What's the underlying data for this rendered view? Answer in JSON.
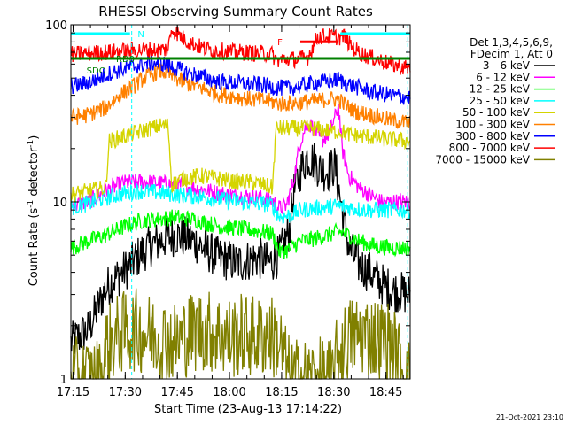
{
  "chart_data": {
    "type": "line",
    "title": "RHESSI Observing Summary Count Rates",
    "xlabel": "Start Time (23-Aug-13 17:14:22)",
    "ylabel_main": "Count Rate (s",
    "ylabel_exp1": "-1",
    "ylabel_mid": " detector",
    "ylabel_exp2": "-1",
    "ylabel_end": ")",
    "y_scale": "log",
    "ylim": [
      1,
      100
    ],
    "xlim_minutes": [
      0,
      97.6
    ],
    "x_ticks": [
      {
        "minute": 0.63,
        "label": "17:15"
      },
      {
        "minute": 15.63,
        "label": "17:30"
      },
      {
        "minute": 30.63,
        "label": "17:45"
      },
      {
        "minute": 45.63,
        "label": "18:00"
      },
      {
        "minute": 60.63,
        "label": "18:15"
      },
      {
        "minute": 75.63,
        "label": "18:30"
      },
      {
        "minute": 90.63,
        "label": "18:45"
      }
    ],
    "y_ticks": [
      {
        "value": 1,
        "label": "1"
      },
      {
        "value": 10,
        "label": "10"
      },
      {
        "value": 100,
        "label": "100"
      }
    ],
    "legend_title_1": "Det 1,3,4,5,6,9,",
    "legend_title_2": "FDecim 1, Att 0",
    "legend_position": "right",
    "footer_date": "21-Oct-2021 23:10",
    "series": [
      {
        "name": "3 - 6 keV",
        "color": "#000000",
        "points": [
          [
            0,
            1.6
          ],
          [
            5,
            1.9
          ],
          [
            8,
            2.6
          ],
          [
            10,
            3.2
          ],
          [
            12,
            3.6
          ],
          [
            15,
            4.0
          ],
          [
            18,
            4.6
          ],
          [
            21,
            5.3
          ],
          [
            24,
            5.8
          ],
          [
            27,
            6.2
          ],
          [
            30,
            6.5
          ],
          [
            33,
            6.3
          ],
          [
            36,
            5.9
          ],
          [
            39,
            5.3
          ],
          [
            42,
            4.9
          ],
          [
            45,
            4.7
          ],
          [
            48,
            4.5
          ],
          [
            51,
            4.7
          ],
          [
            54,
            4.8
          ],
          [
            57,
            4.5
          ],
          [
            60,
            5.0
          ],
          [
            63,
            7.0
          ],
          [
            64,
            11
          ],
          [
            66,
            15
          ],
          [
            68,
            18
          ],
          [
            70,
            17
          ],
          [
            72,
            15
          ],
          [
            74,
            15
          ],
          [
            76,
            16
          ],
          [
            78,
            9
          ],
          [
            80,
            5.5
          ],
          [
            83,
            4.4
          ],
          [
            86,
            4.0
          ],
          [
            89,
            3.5
          ],
          [
            92,
            3.2
          ],
          [
            97,
            3.0
          ]
        ]
      },
      {
        "name": "6 - 12 keV",
        "color": "#ff00ff",
        "points": [
          [
            0,
            9.5
          ],
          [
            5,
            10
          ],
          [
            10,
            11.5
          ],
          [
            15,
            12.8
          ],
          [
            20,
            13.0
          ],
          [
            25,
            12.8
          ],
          [
            30,
            12.5
          ],
          [
            35,
            12.0
          ],
          [
            40,
            11.5
          ],
          [
            45,
            11.0
          ],
          [
            50,
            10.8
          ],
          [
            55,
            10.5
          ],
          [
            58,
            10.2
          ],
          [
            60,
            9.2
          ],
          [
            62,
            9.5
          ],
          [
            64,
            13
          ],
          [
            66,
            22
          ],
          [
            68,
            28
          ],
          [
            70,
            26
          ],
          [
            72,
            22
          ],
          [
            74,
            24
          ],
          [
            76,
            30
          ],
          [
            77,
            35
          ],
          [
            78,
            20
          ],
          [
            80,
            14
          ],
          [
            83,
            12
          ],
          [
            86,
            11
          ],
          [
            89,
            10
          ],
          [
            92,
            10
          ],
          [
            97,
            10
          ]
        ]
      },
      {
        "name": "12 - 25 keV",
        "color": "#00ff00",
        "points": [
          [
            0,
            5.5
          ],
          [
            5,
            6.0
          ],
          [
            10,
            6.5
          ],
          [
            15,
            7.2
          ],
          [
            20,
            7.8
          ],
          [
            25,
            8.0
          ],
          [
            30,
            8.2
          ],
          [
            35,
            8.0
          ],
          [
            40,
            7.5
          ],
          [
            45,
            7.2
          ],
          [
            50,
            7.0
          ],
          [
            55,
            6.8
          ],
          [
            58,
            6.6
          ],
          [
            60,
            5.2
          ],
          [
            63,
            5.4
          ],
          [
            66,
            6.0
          ],
          [
            70,
            6.2
          ],
          [
            74,
            6.5
          ],
          [
            77,
            6.8
          ],
          [
            80,
            6.5
          ],
          [
            83,
            6.0
          ],
          [
            86,
            5.7
          ],
          [
            89,
            5.6
          ],
          [
            92,
            5.5
          ],
          [
            97,
            5.5
          ]
        ]
      },
      {
        "name": "25 - 50 keV",
        "color": "#00ffff",
        "points": [
          [
            0,
            9.3
          ],
          [
            5,
            9.8
          ],
          [
            10,
            10.5
          ],
          [
            15,
            11.2
          ],
          [
            20,
            11.5
          ],
          [
            25,
            11.3
          ],
          [
            30,
            11.0
          ],
          [
            35,
            10.8
          ],
          [
            40,
            10.5
          ],
          [
            45,
            10.2
          ],
          [
            50,
            10.0
          ],
          [
            55,
            9.8
          ],
          [
            58,
            9.6
          ],
          [
            60,
            8.2
          ],
          [
            63,
            8.4
          ],
          [
            66,
            9.0
          ],
          [
            70,
            9.2
          ],
          [
            74,
            9.4
          ],
          [
            77,
            9.5
          ],
          [
            80,
            9.3
          ],
          [
            83,
            9.1
          ],
          [
            86,
            9.0
          ],
          [
            89,
            9.0
          ],
          [
            92,
            9.0
          ],
          [
            97,
            9.0
          ]
        ]
      },
      {
        "name": "50 - 100 keV",
        "color": "#d4d400",
        "points": [
          [
            0,
            11
          ],
          [
            5,
            11.5
          ],
          [
            10,
            12
          ],
          [
            11,
            22
          ],
          [
            14,
            23
          ],
          [
            17,
            24
          ],
          [
            20,
            25
          ],
          [
            23,
            26
          ],
          [
            26,
            27
          ],
          [
            28,
            27
          ],
          [
            29,
            12.5
          ],
          [
            32,
            13.5
          ],
          [
            35,
            13.8
          ],
          [
            38,
            14
          ],
          [
            41,
            13.7
          ],
          [
            44,
            13.4
          ],
          [
            47,
            13
          ],
          [
            50,
            13
          ],
          [
            53,
            12.8
          ],
          [
            55,
            12.5
          ],
          [
            58,
            12
          ],
          [
            59,
            26
          ],
          [
            62,
            26
          ],
          [
            65,
            26
          ],
          [
            70,
            26
          ],
          [
            75,
            25
          ],
          [
            78,
            25
          ],
          [
            80,
            24
          ],
          [
            84,
            23.5
          ],
          [
            88,
            23
          ],
          [
            92,
            22.5
          ],
          [
            97,
            22
          ]
        ]
      },
      {
        "name": "100 - 300 keV",
        "color": "#ff8000",
        "points": [
          [
            0,
            30
          ],
          [
            5,
            31
          ],
          [
            10,
            34
          ],
          [
            14,
            40
          ],
          [
            18,
            45
          ],
          [
            21,
            50
          ],
          [
            24,
            53
          ],
          [
            26,
            55
          ],
          [
            28,
            53
          ],
          [
            30,
            50
          ],
          [
            33,
            47
          ],
          [
            36,
            45
          ],
          [
            39,
            43
          ],
          [
            42,
            41
          ],
          [
            45,
            40
          ],
          [
            48,
            39
          ],
          [
            51,
            38
          ],
          [
            54,
            37.5
          ],
          [
            57,
            37
          ],
          [
            60,
            36
          ],
          [
            63,
            36
          ],
          [
            66,
            36.5
          ],
          [
            70,
            37
          ],
          [
            74,
            38
          ],
          [
            77,
            38
          ],
          [
            80,
            34
          ],
          [
            83,
            32
          ],
          [
            86,
            31
          ],
          [
            89,
            30
          ],
          [
            92,
            29
          ],
          [
            97,
            28
          ]
        ]
      },
      {
        "name": "300 - 800 keV",
        "color": "#0000ff",
        "points": [
          [
            0,
            45
          ],
          [
            3,
            46
          ],
          [
            6,
            48
          ],
          [
            9,
            51
          ],
          [
            12,
            54
          ],
          [
            15,
            56
          ],
          [
            18,
            58
          ],
          [
            21,
            60
          ],
          [
            24,
            61
          ],
          [
            27,
            60
          ],
          [
            30,
            57
          ],
          [
            33,
            54
          ],
          [
            36,
            52
          ],
          [
            39,
            50
          ],
          [
            42,
            48
          ],
          [
            45,
            47
          ],
          [
            48,
            47
          ],
          [
            51,
            46
          ],
          [
            54,
            46
          ],
          [
            57,
            45
          ],
          [
            60,
            44
          ],
          [
            63,
            44
          ],
          [
            66,
            45
          ],
          [
            70,
            47
          ],
          [
            74,
            48
          ],
          [
            77,
            49
          ],
          [
            80,
            46
          ],
          [
            83,
            44
          ],
          [
            86,
            42
          ],
          [
            89,
            41
          ],
          [
            92,
            40
          ],
          [
            97,
            39
          ]
        ]
      },
      {
        "name": "800 - 7000 keV",
        "color": "#ff0000",
        "points": [
          [
            0,
            68
          ],
          [
            5,
            69
          ],
          [
            10,
            70
          ],
          [
            15,
            71
          ],
          [
            20,
            72
          ],
          [
            25,
            72
          ],
          [
            28,
            73
          ],
          [
            29,
            95
          ],
          [
            31,
            88
          ],
          [
            33,
            82
          ],
          [
            35,
            78
          ],
          [
            38,
            74
          ],
          [
            41,
            72
          ],
          [
            44,
            71
          ],
          [
            47,
            70
          ],
          [
            50,
            70
          ],
          [
            53,
            69
          ],
          [
            56,
            69
          ],
          [
            58,
            68
          ],
          [
            59,
            63
          ],
          [
            62,
            64
          ],
          [
            65,
            64
          ],
          [
            68,
            65
          ],
          [
            71,
            86
          ],
          [
            74,
            86
          ],
          [
            77,
            85
          ],
          [
            79,
            86
          ],
          [
            80,
            78
          ],
          [
            82,
            72
          ],
          [
            84,
            68
          ],
          [
            86,
            66
          ],
          [
            88,
            64
          ],
          [
            90,
            62
          ],
          [
            92,
            60
          ],
          [
            95,
            58
          ],
          [
            97,
            57
          ]
        ]
      },
      {
        "name": "7000 - 15000 keV",
        "color": "#808000",
        "points": [
          [
            0,
            1.0
          ],
          [
            9,
            1.0
          ],
          [
            10,
            1.5
          ],
          [
            14,
            1.8
          ],
          [
            18,
            1.9
          ],
          [
            22,
            1.8
          ],
          [
            26,
            1.7
          ],
          [
            30,
            1.6
          ],
          [
            34,
            1.8
          ],
          [
            38,
            1.9
          ],
          [
            42,
            1.8
          ],
          [
            46,
            1.7
          ],
          [
            50,
            1.8
          ],
          [
            54,
            1.7
          ],
          [
            57,
            1.8
          ],
          [
            60,
            1.6
          ],
          [
            63,
            1.0
          ],
          [
            70,
            1.0
          ],
          [
            75,
            1.0
          ],
          [
            77,
            1.4
          ],
          [
            80,
            1.7
          ],
          [
            84,
            1.8
          ],
          [
            88,
            1.7
          ],
          [
            92,
            1.6
          ],
          [
            95,
            1.2
          ],
          [
            97,
            1.0
          ]
        ]
      }
    ],
    "flags": [
      {
        "label": "N",
        "color": "#00ffff",
        "segments": [
          [
            0,
            17
          ]
        ],
        "label_minute": 19.2,
        "level": 0.975
      },
      {
        "label": "",
        "color": "#00ffff",
        "segments": [
          [
            77.5,
            97.6
          ]
        ],
        "level": 0.975
      },
      {
        "label": "F",
        "color": "#ff0000",
        "segments": [
          [
            66,
            76.5
          ]
        ],
        "label_minute": 59.4,
        "level": 0.952
      },
      {
        "label": "RD0",
        "color": "#008000",
        "segments": [
          [
            0,
            97.6
          ]
        ],
        "label_minute": 13,
        "level": 0.905
      },
      {
        "label": "SDO",
        "color": "#008000",
        "segments": [],
        "label_minute": 4.5,
        "level": 0.873
      }
    ],
    "vlines": [
      {
        "minute": 17.5,
        "color": "#00ffff"
      },
      {
        "minute": 96.9,
        "color": "#00ffff"
      }
    ],
    "annotation_rdo": "RD0",
    "annotation_sdo": "SDO",
    "annotation_n": "N",
    "annotation_f": "F"
  }
}
